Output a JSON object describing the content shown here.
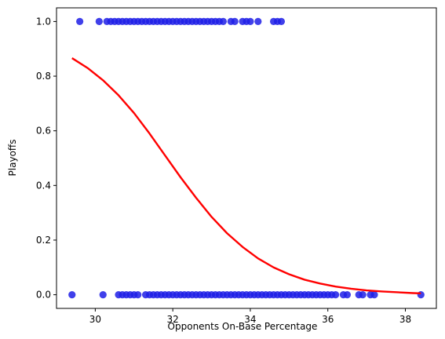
{
  "chart_data": {
    "type": "scatter",
    "title": "",
    "xlabel": "Opponents On-Base Percentage",
    "ylabel": "Playoffs",
    "xlim": [
      29.0,
      38.8
    ],
    "ylim": [
      -0.05,
      1.05
    ],
    "x_ticks": [
      30,
      32,
      34,
      36,
      38
    ],
    "x_tick_labels": [
      "30",
      "32",
      "34",
      "36",
      "38"
    ],
    "y_ticks": [
      0.0,
      0.2,
      0.4,
      0.6,
      0.8,
      1.0
    ],
    "y_tick_labels": [
      "0.0",
      "0.2",
      "0.4",
      "0.6",
      "0.8",
      "1.0"
    ],
    "grid": false,
    "legend": "none",
    "series": [
      {
        "kind": "scatter",
        "color": "#1f1fe6",
        "points": [
          [
            29.6,
            1
          ],
          [
            30.1,
            1
          ],
          [
            30.3,
            1
          ],
          [
            30.4,
            1
          ],
          [
            30.5,
            1
          ],
          [
            30.6,
            1
          ],
          [
            30.7,
            1
          ],
          [
            30.8,
            1
          ],
          [
            30.9,
            1
          ],
          [
            31.0,
            1
          ],
          [
            31.1,
            1
          ],
          [
            31.2,
            1
          ],
          [
            31.3,
            1
          ],
          [
            31.4,
            1
          ],
          [
            31.5,
            1
          ],
          [
            31.6,
            1
          ],
          [
            31.7,
            1
          ],
          [
            31.8,
            1
          ],
          [
            31.9,
            1
          ],
          [
            32.0,
            1
          ],
          [
            32.1,
            1
          ],
          [
            32.2,
            1
          ],
          [
            32.3,
            1
          ],
          [
            32.4,
            1
          ],
          [
            32.5,
            1
          ],
          [
            32.6,
            1
          ],
          [
            32.7,
            1
          ],
          [
            32.8,
            1
          ],
          [
            32.9,
            1
          ],
          [
            33.0,
            1
          ],
          [
            33.1,
            1
          ],
          [
            33.2,
            1
          ],
          [
            33.3,
            1
          ],
          [
            33.5,
            1
          ],
          [
            33.6,
            1
          ],
          [
            33.8,
            1
          ],
          [
            33.9,
            1
          ],
          [
            34.0,
            1
          ],
          [
            34.2,
            1
          ],
          [
            34.6,
            1
          ],
          [
            34.7,
            1
          ],
          [
            34.8,
            1
          ],
          [
            29.4,
            0
          ],
          [
            30.2,
            0
          ],
          [
            30.6,
            0
          ],
          [
            30.7,
            0
          ],
          [
            30.8,
            0
          ],
          [
            30.9,
            0
          ],
          [
            31.0,
            0
          ],
          [
            31.1,
            0
          ],
          [
            31.3,
            0
          ],
          [
            31.4,
            0
          ],
          [
            31.5,
            0
          ],
          [
            31.6,
            0
          ],
          [
            31.7,
            0
          ],
          [
            31.8,
            0
          ],
          [
            31.9,
            0
          ],
          [
            32.0,
            0
          ],
          [
            32.1,
            0
          ],
          [
            32.2,
            0
          ],
          [
            32.3,
            0
          ],
          [
            32.4,
            0
          ],
          [
            32.5,
            0
          ],
          [
            32.6,
            0
          ],
          [
            32.7,
            0
          ],
          [
            32.8,
            0
          ],
          [
            32.9,
            0
          ],
          [
            33.0,
            0
          ],
          [
            33.1,
            0
          ],
          [
            33.2,
            0
          ],
          [
            33.3,
            0
          ],
          [
            33.4,
            0
          ],
          [
            33.5,
            0
          ],
          [
            33.6,
            0
          ],
          [
            33.7,
            0
          ],
          [
            33.8,
            0
          ],
          [
            33.9,
            0
          ],
          [
            34.0,
            0
          ],
          [
            34.1,
            0
          ],
          [
            34.2,
            0
          ],
          [
            34.3,
            0
          ],
          [
            34.4,
            0
          ],
          [
            34.5,
            0
          ],
          [
            34.6,
            0
          ],
          [
            34.7,
            0
          ],
          [
            34.8,
            0
          ],
          [
            34.9,
            0
          ],
          [
            35.0,
            0
          ],
          [
            35.1,
            0
          ],
          [
            35.2,
            0
          ],
          [
            35.3,
            0
          ],
          [
            35.4,
            0
          ],
          [
            35.5,
            0
          ],
          [
            35.6,
            0
          ],
          [
            35.7,
            0
          ],
          [
            35.8,
            0
          ],
          [
            35.9,
            0
          ],
          [
            36.0,
            0
          ],
          [
            36.1,
            0
          ],
          [
            36.2,
            0
          ],
          [
            36.4,
            0
          ],
          [
            36.5,
            0
          ],
          [
            36.8,
            0
          ],
          [
            36.9,
            0
          ],
          [
            37.1,
            0
          ],
          [
            37.2,
            0
          ],
          [
            38.4,
            0
          ]
        ]
      },
      {
        "kind": "line",
        "color": "#ff0000",
        "points": [
          [
            29.4,
            0.866
          ],
          [
            29.8,
            0.83
          ],
          [
            30.2,
            0.785
          ],
          [
            30.6,
            0.73
          ],
          [
            31.0,
            0.665
          ],
          [
            31.4,
            0.59
          ],
          [
            31.8,
            0.51
          ],
          [
            32.2,
            0.43
          ],
          [
            32.6,
            0.355
          ],
          [
            33.0,
            0.285
          ],
          [
            33.4,
            0.225
          ],
          [
            33.8,
            0.175
          ],
          [
            34.2,
            0.133
          ],
          [
            34.6,
            0.1
          ],
          [
            35.0,
            0.075
          ],
          [
            35.4,
            0.055
          ],
          [
            35.8,
            0.041
          ],
          [
            36.2,
            0.03
          ],
          [
            36.6,
            0.022
          ],
          [
            37.0,
            0.016
          ],
          [
            37.4,
            0.012
          ],
          [
            37.8,
            0.009
          ],
          [
            38.2,
            0.006
          ],
          [
            38.4,
            0.005
          ]
        ]
      }
    ]
  }
}
